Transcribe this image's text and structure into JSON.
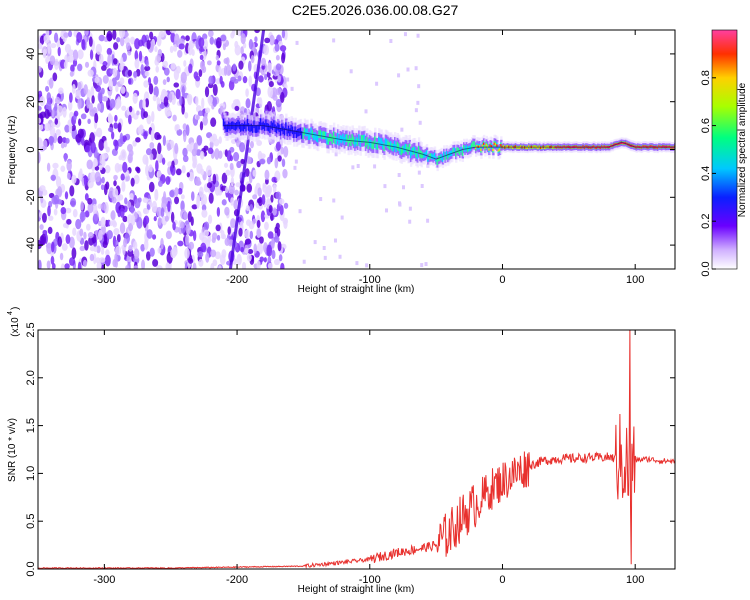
{
  "title": "C2E5.2026.036.00.08.G27",
  "colors": {
    "snr_line": "#e8312e",
    "spec_line": "#5a00d0",
    "axis": "#000000"
  },
  "chart_data": [
    {
      "type": "heatmap",
      "title": "C2E5.2026.036.00.08.G27",
      "xlabel": "Height of straight line (km)",
      "ylabel": "Frequency (Hz)",
      "xlim": [
        -350,
        130
      ],
      "ylim": [
        -50,
        50
      ],
      "x_ticks": [
        -300,
        -200,
        -100,
        0,
        100
      ],
      "y_ticks": [
        -40,
        -20,
        0,
        20,
        40
      ],
      "colorbar": {
        "label": "Normalized spectral amplitude",
        "range": [
          0,
          1
        ],
        "ticks": [
          "0.0",
          "0.2",
          "0.4",
          "0.6",
          "0.8"
        ]
      },
      "ridge_frequency": {
        "x": [
          -210,
          -180,
          -160,
          -140,
          -120,
          -100,
          -80,
          -60,
          -50,
          -40,
          -30,
          -20,
          -10,
          0,
          20,
          40,
          60,
          80,
          90,
          100,
          130
        ],
        "y": [
          10,
          10,
          8,
          6,
          4,
          3,
          1,
          -2,
          -4,
          -2,
          0,
          1,
          1,
          1,
          1,
          1,
          1,
          1,
          3,
          1,
          1
        ]
      }
    },
    {
      "type": "line",
      "xlabel": "Height of straight line (km)",
      "ylabel": "SNR (10 * v/v)",
      "y_multiplier": "(x10",
      "y_multiplier_exp": "4",
      "xlim": [
        -350,
        130
      ],
      "ylim": [
        0,
        2.5
      ],
      "x_ticks": [
        -300,
        -200,
        -100,
        0,
        100
      ],
      "y_ticks": [
        "0.0",
        "0.5",
        "1.0",
        "1.5",
        "2.0",
        "2.5"
      ],
      "series": [
        {
          "x": [
            -350,
            -300,
            -250,
            -200,
            -150,
            -120,
            -100,
            -80,
            -60,
            -50,
            -40,
            -30,
            -20,
            -10,
            0,
            10,
            20,
            30,
            40,
            60,
            80,
            90,
            94,
            96,
            98,
            100,
            110,
            120,
            130
          ],
          "values": [
            0.01,
            0.01,
            0.01,
            0.02,
            0.03,
            0.07,
            0.1,
            0.17,
            0.22,
            0.25,
            0.38,
            0.55,
            0.68,
            0.82,
            0.92,
            1.0,
            1.08,
            1.13,
            1.15,
            1.16,
            1.17,
            1.14,
            1.1,
            0.85,
            1.1,
            1.14,
            1.15,
            1.13,
            1.13
          ]
        }
      ]
    }
  ]
}
